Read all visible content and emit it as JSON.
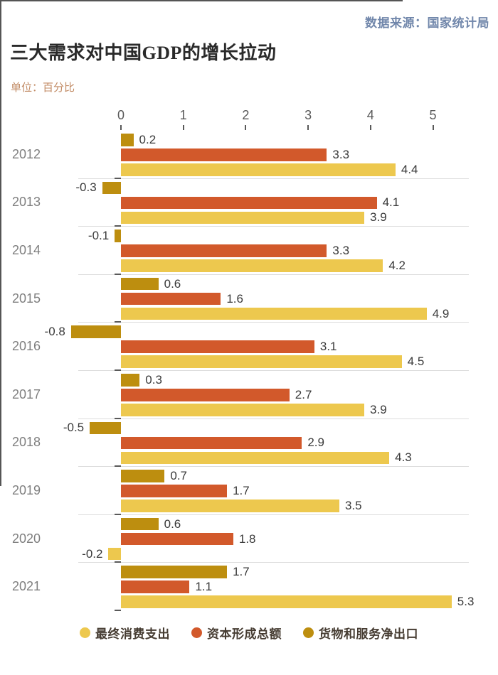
{
  "header": {
    "source": "数据来源：国家统计局",
    "title": "三大需求对中国GDP的增长拉动",
    "unit": "单位：百分比"
  },
  "colors": {
    "consumption": "#edc84e",
    "capital": "#d2592b",
    "net_exports": "#bd8e0f",
    "axis": "#555555",
    "separator": "#dcdcdc",
    "title_text": "#2a2a2a",
    "source_text": "#7187ab",
    "unit_text": "#c18a63",
    "year_label": "#7f7f7f",
    "value_label": "#3a3a3a",
    "legend_text": "#463c32"
  },
  "chart_data": {
    "type": "bar",
    "orientation": "horizontal-grouped",
    "title": "三大需求对中国GDP的增长拉动",
    "unit": "百分比",
    "source": "国家统计局",
    "categories": [
      "2012",
      "2013",
      "2014",
      "2015",
      "2016",
      "2017",
      "2018",
      "2019",
      "2020",
      "2021"
    ],
    "x_ticks": [
      0,
      1,
      2,
      3,
      4,
      5
    ],
    "xlim": [
      -0.9,
      5.6
    ],
    "grid": false,
    "legend_position": "bottom",
    "bar_order_within_group": [
      "net_exports",
      "capital",
      "consumption"
    ],
    "series": [
      {
        "key": "consumption",
        "name": "最终消费支出",
        "color": "#edc84e",
        "values": [
          4.4,
          3.9,
          4.2,
          4.9,
          4.5,
          3.9,
          4.3,
          3.5,
          -0.2,
          5.3
        ]
      },
      {
        "key": "capital",
        "name": "资本形成总额",
        "color": "#d2592b",
        "values": [
          3.3,
          4.1,
          3.3,
          1.6,
          3.1,
          2.7,
          2.9,
          1.7,
          1.8,
          1.1
        ]
      },
      {
        "key": "net_exports",
        "name": "货物和服务净出口",
        "color": "#bd8e0f",
        "values": [
          0.2,
          -0.3,
          -0.1,
          0.6,
          -0.8,
          0.3,
          -0.5,
          0.7,
          0.6,
          1.7
        ]
      }
    ]
  }
}
